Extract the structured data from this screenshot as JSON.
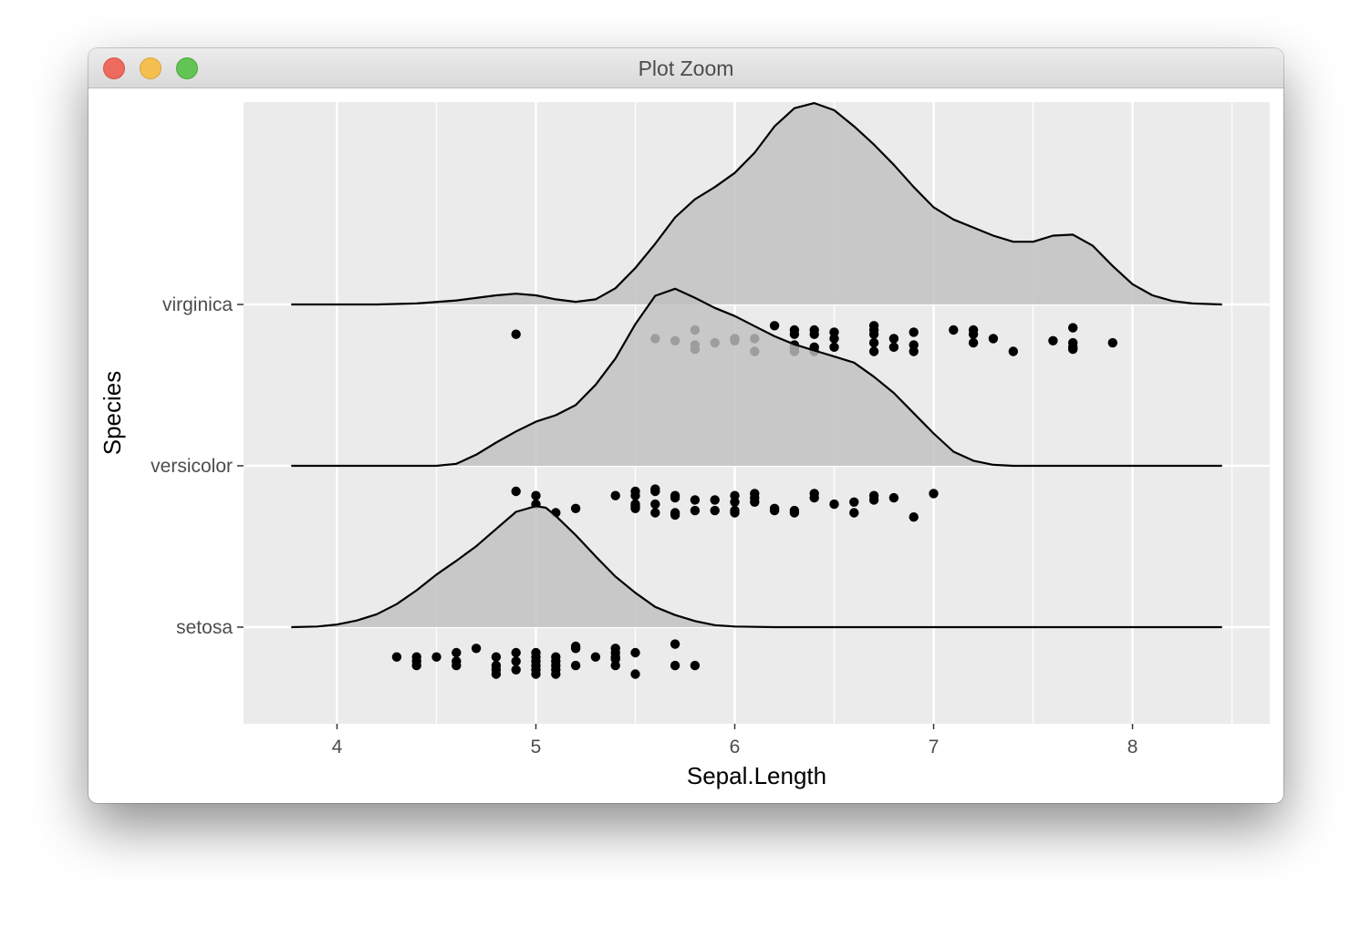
{
  "window": {
    "title": "Plot Zoom"
  },
  "colors": {
    "panel": "#ebebeb",
    "grid": "#ffffff",
    "fill": "#bfbfbf",
    "line": "#000000",
    "point": "#000000"
  },
  "chart_data": {
    "type": "ridgeline",
    "xlabel": "Sepal.Length",
    "ylabel": "Species",
    "xlim": [
      3.53,
      8.69
    ],
    "x_ticks": [
      "4",
      "5",
      "6",
      "7",
      "8"
    ],
    "categories": [
      "setosa",
      "versicolor",
      "virginica"
    ],
    "grid": true,
    "series": [
      {
        "name": "setosa",
        "density": [
          [
            3.77,
            0
          ],
          [
            3.9,
            0.003
          ],
          [
            4.0,
            0.013
          ],
          [
            4.1,
            0.033
          ],
          [
            4.2,
            0.064
          ],
          [
            4.3,
            0.114
          ],
          [
            4.4,
            0.182
          ],
          [
            4.5,
            0.26
          ],
          [
            4.6,
            0.328
          ],
          [
            4.7,
            0.4
          ],
          [
            4.8,
            0.485
          ],
          [
            4.9,
            0.57
          ],
          [
            5.0,
            0.598
          ],
          [
            5.05,
            0.59
          ],
          [
            5.1,
            0.55
          ],
          [
            5.2,
            0.455
          ],
          [
            5.3,
            0.35
          ],
          [
            5.4,
            0.25
          ],
          [
            5.5,
            0.17
          ],
          [
            5.6,
            0.1
          ],
          [
            5.7,
            0.06
          ],
          [
            5.8,
            0.03
          ],
          [
            5.9,
            0.01
          ],
          [
            6.0,
            0.003
          ],
          [
            6.2,
            0
          ],
          [
            8.45,
            0
          ]
        ],
        "points": [
          [
            4.3,
            -1
          ],
          [
            4.4,
            -1
          ],
          [
            4.4,
            -2
          ],
          [
            4.4,
            -3
          ],
          [
            4.5,
            -1
          ],
          [
            4.6,
            0
          ],
          [
            4.6,
            -2
          ],
          [
            4.6,
            -3
          ],
          [
            4.7,
            1
          ],
          [
            4.8,
            -1
          ],
          [
            4.8,
            -3
          ],
          [
            4.8,
            -4
          ],
          [
            4.8,
            -5
          ],
          [
            4.9,
            0
          ],
          [
            4.9,
            -2
          ],
          [
            4.9,
            -4
          ],
          [
            5.0,
            0
          ],
          [
            5.0,
            -1
          ],
          [
            5.0,
            -2
          ],
          [
            5.0,
            -3
          ],
          [
            5.0,
            -4
          ],
          [
            5.0,
            -5
          ],
          [
            5.1,
            -1
          ],
          [
            5.1,
            -2
          ],
          [
            5.1,
            -3
          ],
          [
            5.1,
            -4
          ],
          [
            5.1,
            -5
          ],
          [
            5.2,
            1
          ],
          [
            5.2,
            1.5
          ],
          [
            5.2,
            -3
          ],
          [
            5.3,
            -1
          ],
          [
            5.4,
            1
          ],
          [
            5.4,
            0
          ],
          [
            5.4,
            -1
          ],
          [
            5.4,
            -1.5
          ],
          [
            5.4,
            -3
          ],
          [
            5.5,
            0
          ],
          [
            5.5,
            -5
          ],
          [
            5.7,
            2
          ],
          [
            5.7,
            -3
          ],
          [
            5.8,
            -3
          ]
        ]
      },
      {
        "name": "versicolor",
        "density": [
          [
            3.77,
            0
          ],
          [
            4.5,
            0
          ],
          [
            4.6,
            0.01
          ],
          [
            4.7,
            0.055
          ],
          [
            4.8,
            0.115
          ],
          [
            4.9,
            0.17
          ],
          [
            5.0,
            0.218
          ],
          [
            5.1,
            0.25
          ],
          [
            5.2,
            0.3
          ],
          [
            5.3,
            0.4
          ],
          [
            5.4,
            0.53
          ],
          [
            5.5,
            0.7
          ],
          [
            5.6,
            0.84
          ],
          [
            5.7,
            0.875
          ],
          [
            5.8,
            0.83
          ],
          [
            5.9,
            0.78
          ],
          [
            6.0,
            0.74
          ],
          [
            6.1,
            0.69
          ],
          [
            6.2,
            0.64
          ],
          [
            6.3,
            0.6
          ],
          [
            6.4,
            0.57
          ],
          [
            6.5,
            0.54
          ],
          [
            6.6,
            0.51
          ],
          [
            6.7,
            0.44
          ],
          [
            6.8,
            0.36
          ],
          [
            6.9,
            0.26
          ],
          [
            7.0,
            0.16
          ],
          [
            7.1,
            0.07
          ],
          [
            7.2,
            0.025
          ],
          [
            7.3,
            0.005
          ],
          [
            7.4,
            0
          ],
          [
            8.45,
            0
          ]
        ],
        "points": [
          [
            4.9,
            0
          ],
          [
            5.0,
            -1
          ],
          [
            5.0,
            -3
          ],
          [
            5.1,
            -5
          ],
          [
            5.2,
            -4
          ],
          [
            5.4,
            -1
          ],
          [
            5.5,
            0
          ],
          [
            5.5,
            -1
          ],
          [
            5.5,
            -3
          ],
          [
            5.5,
            -3.5
          ],
          [
            5.5,
            -4
          ],
          [
            5.6,
            0
          ],
          [
            5.6,
            0.5
          ],
          [
            5.6,
            -3
          ],
          [
            5.6,
            -5
          ],
          [
            5.7,
            -1
          ],
          [
            5.7,
            -1.5
          ],
          [
            5.7,
            -5
          ],
          [
            5.7,
            -5.5
          ],
          [
            5.8,
            -2
          ],
          [
            5.8,
            -4.5
          ],
          [
            5.9,
            -2
          ],
          [
            5.9,
            -4.5
          ],
          [
            6.0,
            -1
          ],
          [
            6.0,
            -2.5
          ],
          [
            6.0,
            -4.5
          ],
          [
            6.0,
            -5
          ],
          [
            6.1,
            -0.5
          ],
          [
            6.1,
            -1.5
          ],
          [
            6.1,
            -2.5
          ],
          [
            6.2,
            -4
          ],
          [
            6.2,
            -4.5
          ],
          [
            6.3,
            -4.5
          ],
          [
            6.3,
            -5
          ],
          [
            6.4,
            -0.5
          ],
          [
            6.4,
            -1.5
          ],
          [
            6.5,
            -3
          ],
          [
            6.6,
            -2.5
          ],
          [
            6.6,
            -5
          ],
          [
            6.7,
            -1
          ],
          [
            6.7,
            -2
          ],
          [
            6.8,
            -1.5
          ],
          [
            6.9,
            -6
          ],
          [
            7.0,
            -0.5
          ]
        ]
      },
      {
        "name": "virginica",
        "density": [
          [
            3.77,
            0
          ],
          [
            4.2,
            0
          ],
          [
            4.4,
            0.005
          ],
          [
            4.6,
            0.02
          ],
          [
            4.8,
            0.045
          ],
          [
            4.9,
            0.053
          ],
          [
            5.0,
            0.045
          ],
          [
            5.1,
            0.025
          ],
          [
            5.2,
            0.013
          ],
          [
            5.3,
            0.025
          ],
          [
            5.4,
            0.08
          ],
          [
            5.5,
            0.18
          ],
          [
            5.6,
            0.3
          ],
          [
            5.7,
            0.43
          ],
          [
            5.8,
            0.52
          ],
          [
            5.9,
            0.58
          ],
          [
            6.0,
            0.65
          ],
          [
            6.1,
            0.75
          ],
          [
            6.2,
            0.88
          ],
          [
            6.3,
            0.97
          ],
          [
            6.4,
            0.995
          ],
          [
            6.5,
            0.96
          ],
          [
            6.6,
            0.88
          ],
          [
            6.7,
            0.79
          ],
          [
            6.8,
            0.69
          ],
          [
            6.9,
            0.58
          ],
          [
            7.0,
            0.48
          ],
          [
            7.1,
            0.42
          ],
          [
            7.2,
            0.38
          ],
          [
            7.3,
            0.34
          ],
          [
            7.4,
            0.31
          ],
          [
            7.5,
            0.31
          ],
          [
            7.6,
            0.34
          ],
          [
            7.7,
            0.345
          ],
          [
            7.8,
            0.29
          ],
          [
            7.9,
            0.19
          ],
          [
            8.0,
            0.1
          ],
          [
            8.1,
            0.045
          ],
          [
            8.2,
            0.017
          ],
          [
            8.3,
            0.005
          ],
          [
            8.45,
            0
          ]
        ],
        "points": [
          [
            4.9,
            -1
          ],
          [
            5.6,
            -2
          ],
          [
            5.7,
            -2.5
          ],
          [
            5.8,
            0
          ],
          [
            5.8,
            -3.5
          ],
          [
            5.8,
            -4.5
          ],
          [
            5.9,
            -3
          ],
          [
            6.0,
            -2
          ],
          [
            6.0,
            -2.5
          ],
          [
            6.1,
            -2
          ],
          [
            6.1,
            -5
          ],
          [
            6.2,
            1
          ],
          [
            6.3,
            0
          ],
          [
            6.3,
            -1
          ],
          [
            6.3,
            -3.5
          ],
          [
            6.3,
            -4
          ],
          [
            6.3,
            -4.5
          ],
          [
            6.3,
            -5
          ],
          [
            6.4,
            0
          ],
          [
            6.4,
            -1
          ],
          [
            6.4,
            -4
          ],
          [
            6.4,
            -5
          ],
          [
            6.5,
            -0.5
          ],
          [
            6.5,
            -2
          ],
          [
            6.5,
            -4
          ],
          [
            6.7,
            1
          ],
          [
            6.7,
            0
          ],
          [
            6.7,
            -1
          ],
          [
            6.7,
            -3
          ],
          [
            6.7,
            -5
          ],
          [
            6.8,
            -2
          ],
          [
            6.8,
            -4
          ],
          [
            6.9,
            -0.5
          ],
          [
            6.9,
            -3.5
          ],
          [
            6.9,
            -5
          ],
          [
            7.1,
            0
          ],
          [
            7.2,
            0
          ],
          [
            7.2,
            -1
          ],
          [
            7.2,
            -3
          ],
          [
            7.3,
            -2
          ],
          [
            7.4,
            -5
          ],
          [
            7.6,
            -2.5
          ],
          [
            7.7,
            0.5
          ],
          [
            7.7,
            -3
          ],
          [
            7.7,
            -4
          ],
          [
            7.7,
            -4.5
          ],
          [
            7.9,
            -3
          ]
        ]
      }
    ]
  }
}
